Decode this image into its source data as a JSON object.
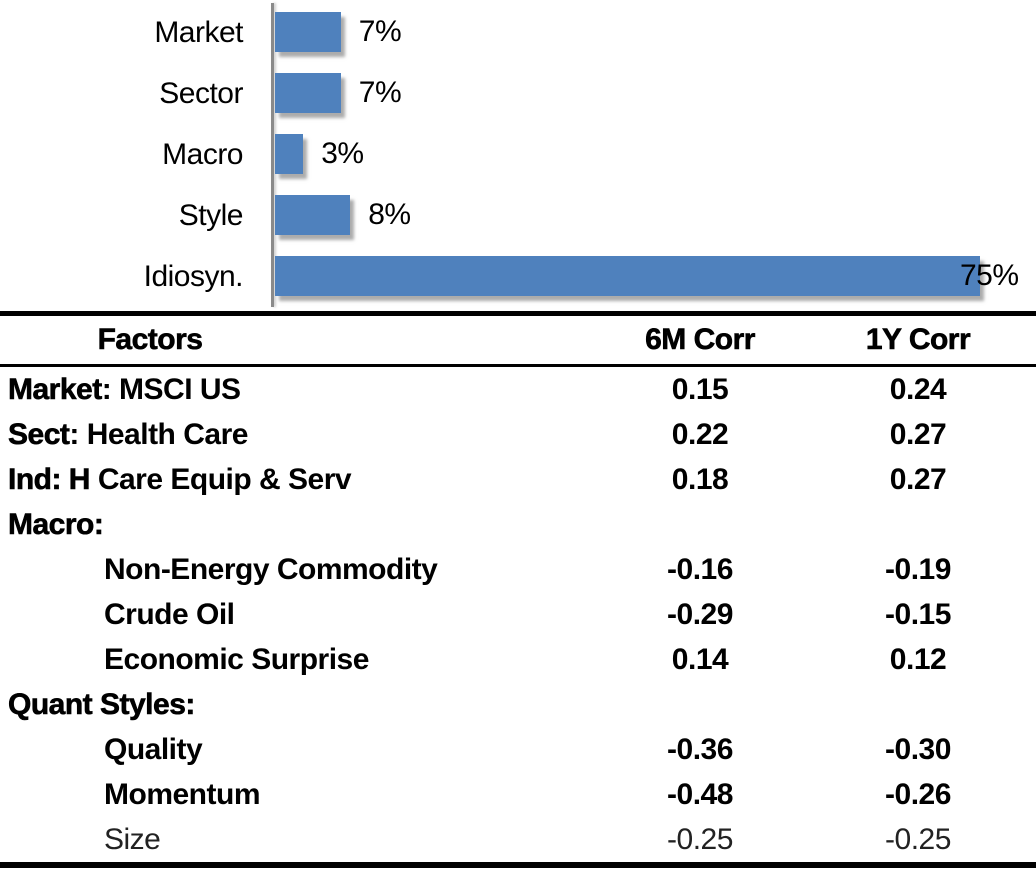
{
  "chart_data": {
    "type": "bar",
    "orientation": "horizontal",
    "title": "",
    "xlabel": "",
    "ylabel": "",
    "categories": [
      "Market",
      "Sector",
      "Macro",
      "Style",
      "Idiosyn."
    ],
    "values": [
      7,
      7,
      3,
      8,
      75
    ],
    "value_labels": [
      "7%",
      "7%",
      "3%",
      "8%",
      "75%"
    ],
    "xlim": [
      0,
      80
    ],
    "grid": false,
    "legend": false,
    "bar_color": "#4f81bd",
    "axis_color": "#8a8a8a"
  },
  "table": {
    "headers": {
      "factors": "Factors",
      "corr_6m": "6M Corr",
      "corr_1y": "1Y Corr"
    },
    "rows": [
      {
        "bold": "Market",
        "rest": ": MSCI US",
        "indent": false,
        "corr_6m": "0.15",
        "corr_1y": "0.24",
        "muted": false
      },
      {
        "bold": "Sect",
        "rest": ": Health Care",
        "indent": false,
        "corr_6m": "0.22",
        "corr_1y": "0.27",
        "muted": false
      },
      {
        "bold": "Ind: H",
        "rest": " Care Equip & Serv",
        "indent": false,
        "corr_6m": "0.18",
        "corr_1y": "0.27",
        "muted": false
      },
      {
        "bold": "Macro:",
        "rest": "",
        "indent": false,
        "corr_6m": "",
        "corr_1y": "",
        "muted": false
      },
      {
        "bold": "",
        "rest": "Non-Energy Commodity",
        "indent": true,
        "corr_6m": "-0.16",
        "corr_1y": "-0.19",
        "muted": false
      },
      {
        "bold": "",
        "rest": "Crude Oil",
        "indent": true,
        "corr_6m": "-0.29",
        "corr_1y": "-0.15",
        "muted": false
      },
      {
        "bold": "",
        "rest": "Economic Surprise",
        "indent": true,
        "corr_6m": "0.14",
        "corr_1y": "0.12",
        "muted": false
      },
      {
        "bold": "Quant Styles:",
        "rest": "",
        "indent": false,
        "corr_6m": "",
        "corr_1y": "",
        "muted": false
      },
      {
        "bold": "",
        "rest": "Quality",
        "indent": true,
        "corr_6m": "-0.36",
        "corr_1y": "-0.30",
        "muted": false
      },
      {
        "bold": "",
        "rest": "Momentum",
        "indent": true,
        "corr_6m": "-0.48",
        "corr_1y": "-0.26",
        "muted": false
      },
      {
        "bold": "",
        "rest": "Size",
        "indent": true,
        "corr_6m": "-0.25",
        "corr_1y": "-0.25",
        "muted": true
      }
    ]
  }
}
